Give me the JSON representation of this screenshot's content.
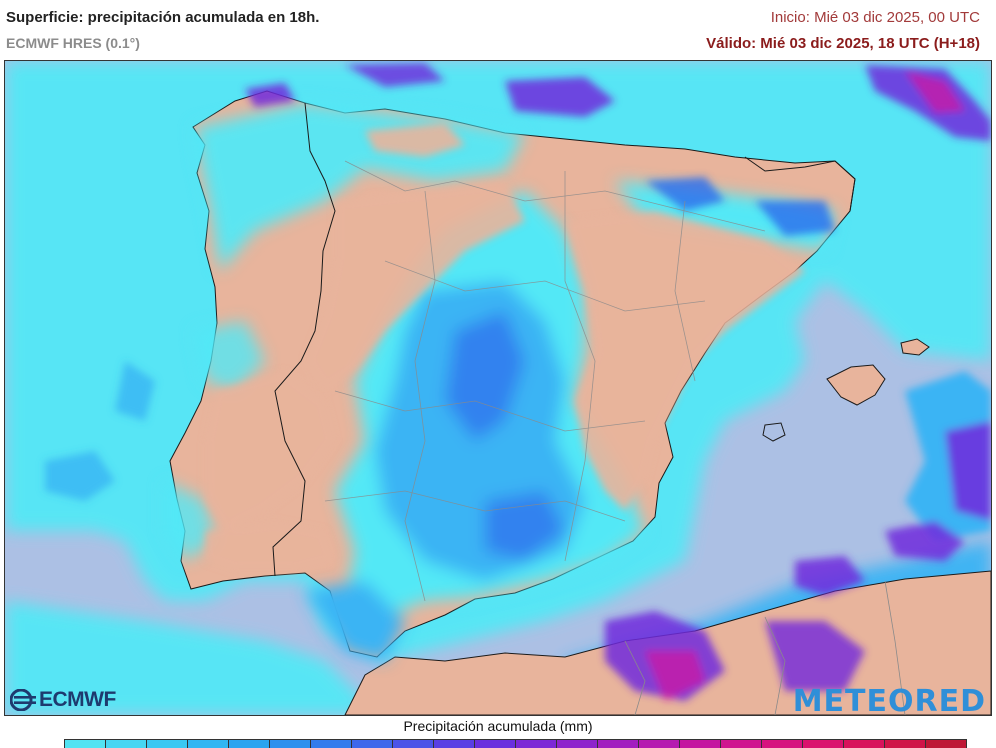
{
  "header": {
    "title": "Superficie: precipitación acumulada en 18h.",
    "model": "ECMWF HRES (0.1°)",
    "init": "Inicio: Mié 03 dic 2025, 00 UTC",
    "valid": "Válido: Mié 03 dic 2025, 18 UTC (H+18)"
  },
  "logos": {
    "left": "ECMWF",
    "right": "METEORED"
  },
  "legend": {
    "title": "Precipitación acumulada (mm)",
    "colors": [
      "#52e3f2",
      "#46d6f2",
      "#3ac8f2",
      "#30b6f2",
      "#2aa4f0",
      "#2c90ee",
      "#337ced",
      "#3f68eb",
      "#4b54e8",
      "#5a3fe4",
      "#6a2fde",
      "#7c28d6",
      "#8e24cc",
      "#a21fbf",
      "#b51bb0",
      "#c416a0",
      "#cf148f",
      "#d6137f",
      "#da136e",
      "#d8135c",
      "#cf1548",
      "#be1836"
    ]
  },
  "colors": {
    "land": "#e8b49c",
    "sea": "#acc0e4",
    "rain_light": "#52e8f6",
    "rain_mid": "#3ab4f4",
    "rain_heavy": "#2c6cec",
    "rain_intense": "#7028dc",
    "rain_extreme": "#c81aa8"
  }
}
